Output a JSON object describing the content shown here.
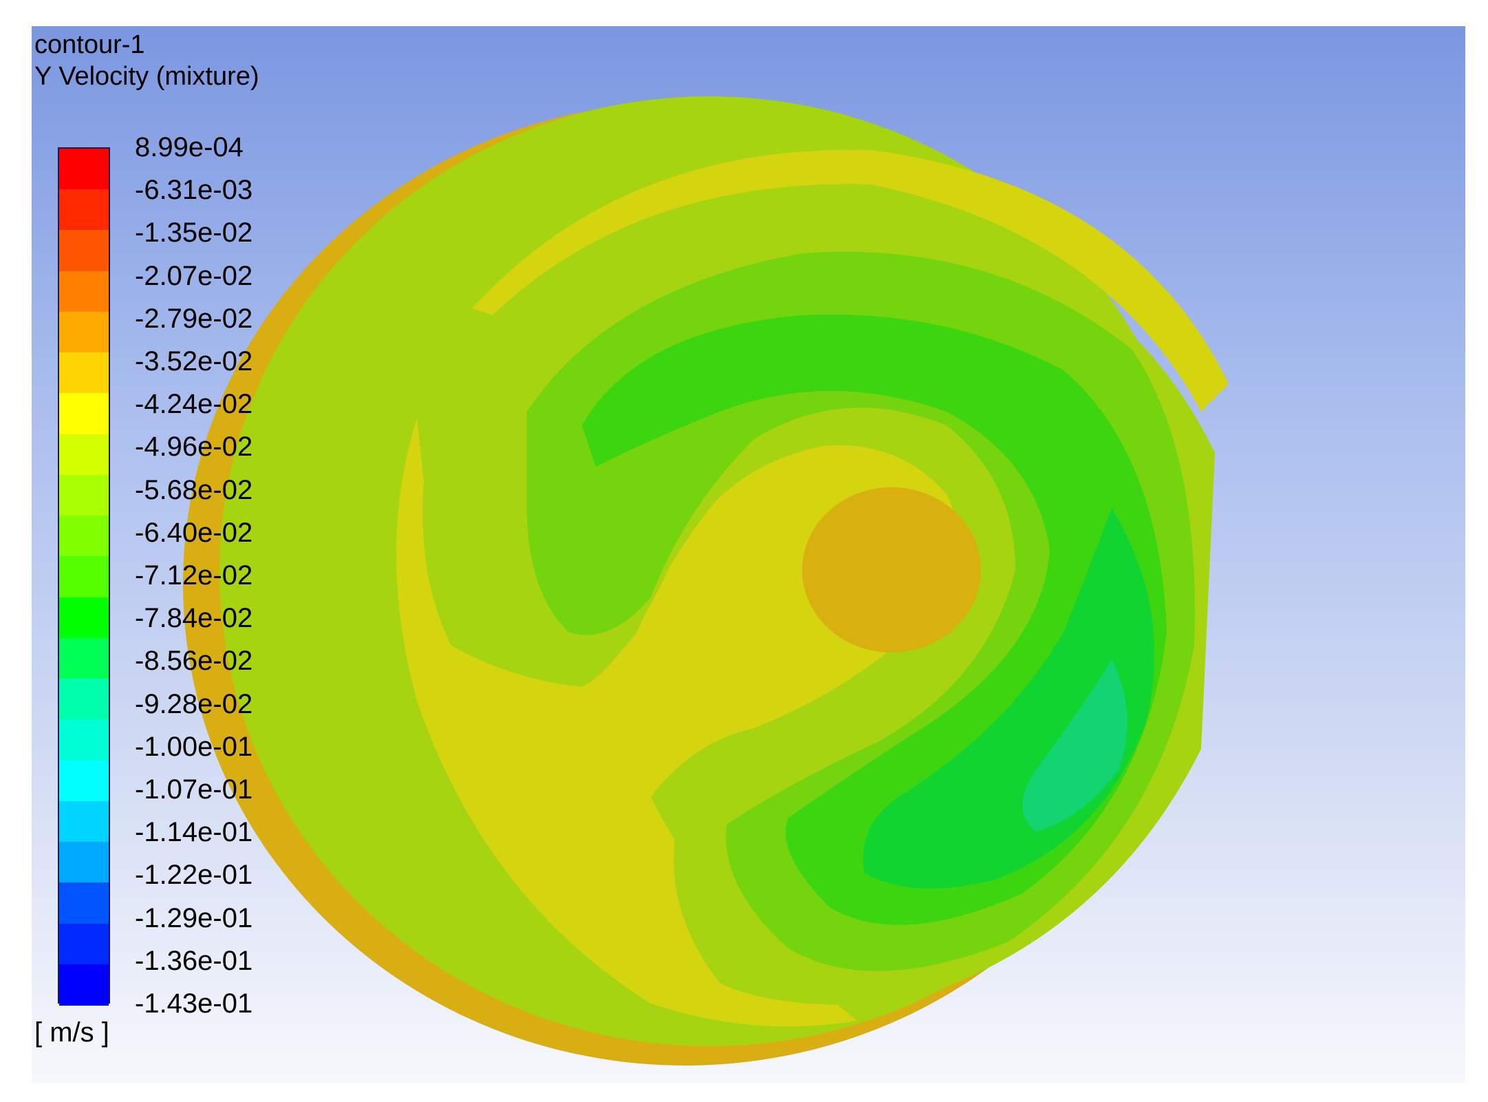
{
  "title": {
    "name": "contour-1",
    "variable": "Y Velocity (mixture)"
  },
  "legend": {
    "unit": "[ m/s ]",
    "levels": [
      "8.99e-04",
      "-6.31e-03",
      "-1.35e-02",
      "-2.07e-02",
      "-2.79e-02",
      "-3.52e-02",
      "-4.24e-02",
      "-4.96e-02",
      "-5.68e-02",
      "-6.40e-02",
      "-7.12e-02",
      "-7.84e-02",
      "-8.56e-02",
      "-9.28e-02",
      "-1.00e-01",
      "-1.07e-01",
      "-1.14e-01",
      "-1.22e-01",
      "-1.29e-01",
      "-1.36e-01",
      "-1.43e-01"
    ],
    "colors": [
      "#ff0000",
      "#ff2a00",
      "#ff5500",
      "#ff7f00",
      "#ffaa00",
      "#ffd400",
      "#ffff00",
      "#d4ff00",
      "#aaff00",
      "#7fff00",
      "#55ff00",
      "#00ff00",
      "#00ff55",
      "#00ffaa",
      "#00ffd4",
      "#00ffff",
      "#00d4ff",
      "#00aaff",
      "#0055ff",
      "#002aff",
      "#0000ff"
    ]
  },
  "colors": {
    "rim_dark": "#d49a10",
    "side": "#d8ae12",
    "zone_yellow": "#d4d50e",
    "zone_lime": "#a6d410",
    "zone_green1": "#74d40e",
    "zone_green2": "#3dd410",
    "zone_green3": "#12d430",
    "zone_cyan": "#12d470",
    "zone_orange": "#d8b010"
  }
}
